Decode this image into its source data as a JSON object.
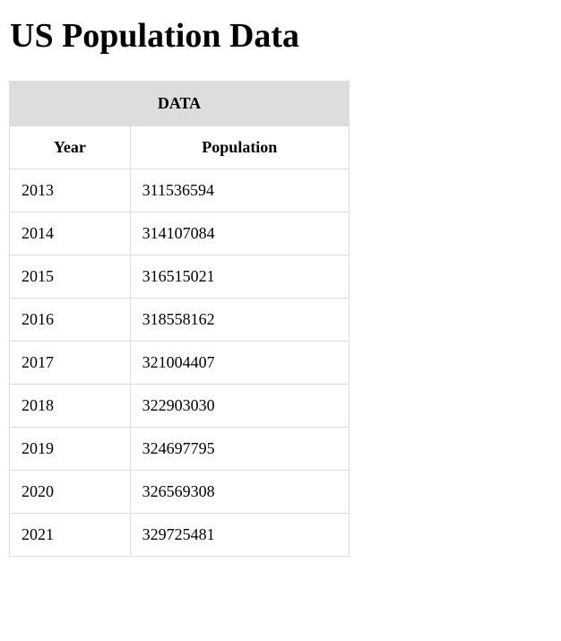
{
  "title": "US Population Data",
  "table": {
    "caption": "DATA",
    "headers": {
      "year": "Year",
      "population": "Population"
    },
    "rows": [
      {
        "year": "2013",
        "population": "311536594"
      },
      {
        "year": "2014",
        "population": "314107084"
      },
      {
        "year": "2015",
        "population": "316515021"
      },
      {
        "year": "2016",
        "population": "318558162"
      },
      {
        "year": "2017",
        "population": "321004407"
      },
      {
        "year": "2018",
        "population": "322903030"
      },
      {
        "year": "2019",
        "population": "324697795"
      },
      {
        "year": "2020",
        "population": "326569308"
      },
      {
        "year": "2021",
        "population": "329725481"
      }
    ]
  }
}
